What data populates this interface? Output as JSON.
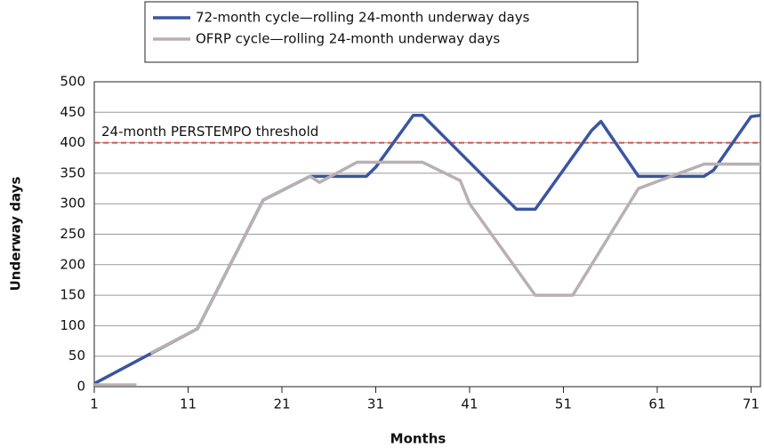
{
  "chart_data": {
    "type": "line",
    "x_label": "Months",
    "y_label": "Underway days",
    "xlim": [
      1,
      72
    ],
    "xticks": [
      1,
      11,
      21,
      31,
      41,
      51,
      61,
      71
    ],
    "ylim": [
      0,
      500
    ],
    "yticks": [
      0,
      50,
      100,
      150,
      200,
      250,
      300,
      350,
      400,
      450,
      500
    ],
    "grid": true,
    "legend": "top",
    "threshold": {
      "value": 400,
      "label": "24-month PERSTEMPO threshold",
      "color": "#d9534f"
    },
    "series": [
      {
        "name": "72-month cycle—rolling 24-month underway days",
        "color": "#3a55a0",
        "x": [
          1,
          12,
          19,
          24,
          30,
          31,
          35,
          36,
          46,
          48,
          54,
          55,
          59,
          66,
          67,
          71,
          72
        ],
        "values": [
          5,
          95,
          306,
          345,
          345,
          360,
          445,
          445,
          291,
          291,
          420,
          435,
          345,
          345,
          355,
          443,
          445
        ]
      },
      {
        "name": "OFRP cycle—rolling 24-month underway days",
        "color": "#b9b0b3",
        "x": [
          1,
          5.5,
          6.2,
          7,
          12,
          19,
          24,
          25,
          29,
          36,
          40,
          41,
          48,
          52,
          59,
          66,
          72
        ],
        "values": [
          3,
          3,
          null,
          55,
          95,
          306,
          345,
          335,
          368,
          368,
          338,
          300,
          150,
          150,
          325,
          365,
          365
        ]
      }
    ]
  }
}
